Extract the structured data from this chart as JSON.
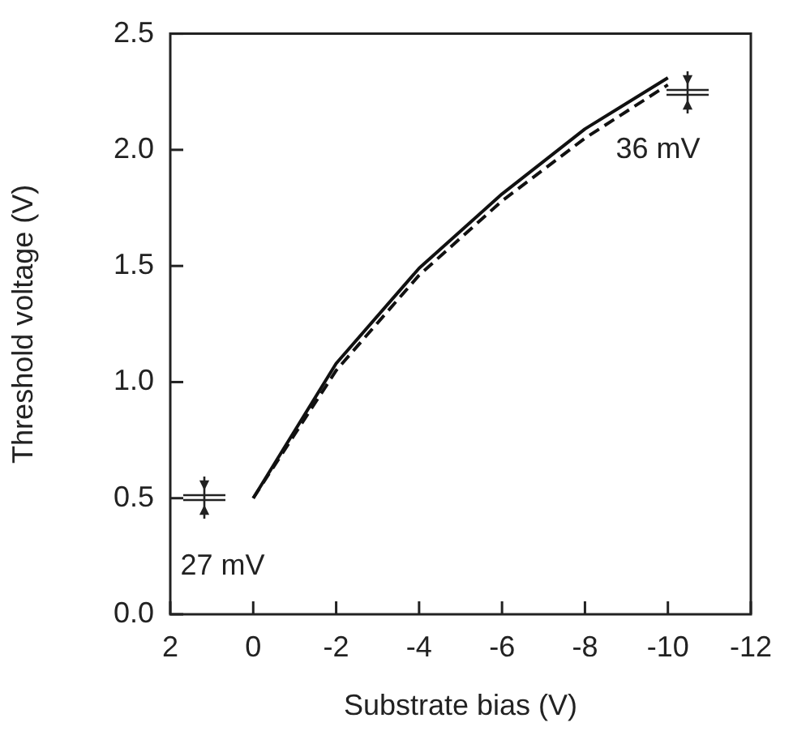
{
  "chart_data": {
    "type": "line",
    "xlabel": "Substrate bias (V)",
    "ylabel": "Threshold voltage (V)",
    "xlim": [
      2,
      -12
    ],
    "xticks": [
      2,
      0,
      -2,
      -4,
      -6,
      -8,
      -10,
      -12
    ],
    "ylim": [
      0,
      2.5
    ],
    "yticks": [
      {
        "value": 0,
        "label": "0.0"
      },
      0.5,
      {
        "value": 1,
        "label": "1.0"
      },
      1.5,
      {
        "value": 2,
        "label": "2.0"
      },
      2.5
    ],
    "x": [
      0,
      -2,
      -4,
      -6,
      -8,
      -10
    ],
    "series": [
      {
        "color": "#111111",
        "line_style": "solid",
        "values": [
          0.5,
          1.08,
          1.49,
          1.81,
          2.09,
          2.31
        ]
      },
      {
        "color": "#111111",
        "line_style": "dashed",
        "values": [
          0.5,
          1.05,
          1.46,
          1.78,
          2.05,
          2.28
        ]
      }
    ],
    "annotations": [
      "27 mV",
      "36 mV"
    ],
    "grid": false,
    "legend": false,
    "marker": "none"
  }
}
